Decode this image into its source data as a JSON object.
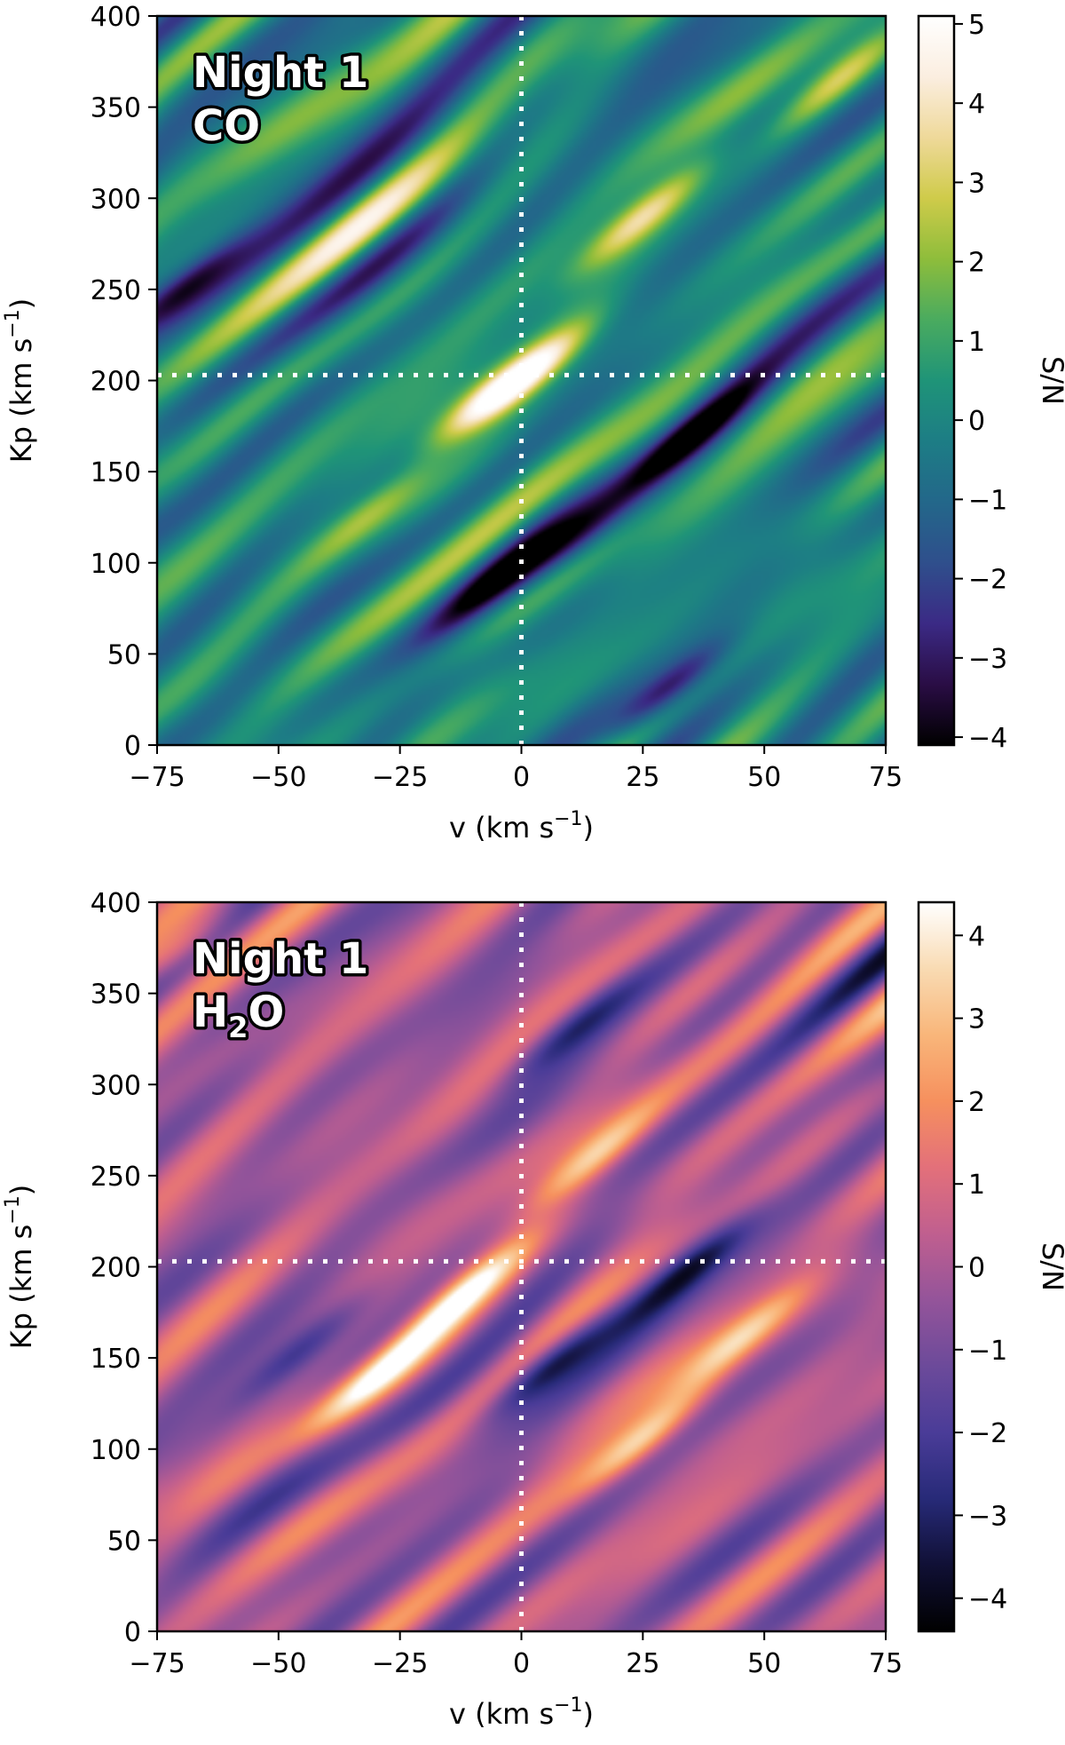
{
  "chart_data": [
    {
      "type": "heatmap",
      "annotation_lines": [
        "Night 1",
        "CO"
      ],
      "xlabel": "v (km s",
      "xlabel_sup": "−1",
      "xlabel_end": ")",
      "ylabel": "Kp (km s",
      "ylabel_sup": "−1",
      "ylabel_end": ")",
      "colorbar_label": "S/N",
      "xlim": [
        -75,
        75
      ],
      "ylim": [
        0,
        400
      ],
      "xticks": [
        -75,
        -50,
        -25,
        0,
        25,
        50,
        75
      ],
      "xtick_labels": [
        "−75",
        "−50",
        "−25",
        "0",
        "25",
        "50",
        "75"
      ],
      "yticks": [
        0,
        50,
        100,
        150,
        200,
        250,
        300,
        350,
        400
      ],
      "ytick_labels": [
        "0",
        "50",
        "100",
        "150",
        "200",
        "250",
        "300",
        "350",
        "400"
      ],
      "colorbar_range": [
        -4.1,
        5.1
      ],
      "colorbar_ticks": [
        -4,
        -3,
        -2,
        -1,
        0,
        1,
        2,
        3,
        4,
        5
      ],
      "colorbar_tick_labels": [
        "−4",
        "−3",
        "−2",
        "−1",
        "0",
        "1",
        "2",
        "3",
        "4",
        "5"
      ],
      "colormap": [
        "#000000",
        "#2a0d45",
        "#3b2a85",
        "#2f4f8c",
        "#23678a",
        "#1d7d85",
        "#1f9478",
        "#4aab5f",
        "#8ebd3b",
        "#cfcb4a",
        "#efd99a",
        "#fbeee0",
        "#ffffff"
      ],
      "reference_lines": {
        "v": 0,
        "Kp": 203
      },
      "peak": {
        "v": 2,
        "Kp": 203,
        "snr": 4.8
      },
      "features": [
        {
          "v": 0,
          "Kp": 200,
          "snr": 4.8
        },
        {
          "v": -8,
          "Kp": 190,
          "snr": 3.5
        },
        {
          "v": 25,
          "Kp": 290,
          "snr": 3.8
        },
        {
          "v": 65,
          "Kp": 365,
          "snr": 3.0
        },
        {
          "v": -30,
          "Kp": 130,
          "snr": 2.5
        },
        {
          "v": -70,
          "Kp": 250,
          "snr": -3.2
        },
        {
          "v": 35,
          "Kp": 170,
          "snr": -3.5
        },
        {
          "v": 30,
          "Kp": 30,
          "snr": -3.5
        },
        {
          "v": 10,
          "Kp": 110,
          "snr": -2.8
        },
        {
          "v": -5,
          "Kp": 90,
          "snr": -2.5
        }
      ]
    },
    {
      "type": "heatmap",
      "annotation_lines": [
        "Night 1",
        "H",
        "2",
        "O"
      ],
      "xlabel": "v (km s",
      "xlabel_sup": "−1",
      "xlabel_end": ")",
      "ylabel": "Kp (km s",
      "ylabel_sup": "−1",
      "ylabel_end": ")",
      "colorbar_label": "S/N",
      "xlim": [
        -75,
        75
      ],
      "ylim": [
        0,
        400
      ],
      "xticks": [
        -75,
        -50,
        -25,
        0,
        25,
        50,
        75
      ],
      "xtick_labels": [
        "−75",
        "−50",
        "−25",
        "0",
        "25",
        "50",
        "75"
      ],
      "yticks": [
        0,
        50,
        100,
        150,
        200,
        250,
        300,
        350,
        400
      ],
      "ytick_labels": [
        "0",
        "50",
        "100",
        "150",
        "200",
        "250",
        "300",
        "350",
        "400"
      ],
      "colorbar_range": [
        -4.4,
        4.4
      ],
      "colorbar_ticks": [
        -4,
        -3,
        -2,
        -1,
        0,
        1,
        2,
        3,
        4
      ],
      "colorbar_tick_labels": [
        "−4",
        "−3",
        "−2",
        "−1",
        "0",
        "1",
        "2",
        "3",
        "4"
      ],
      "colormap": [
        "#000000",
        "#101035",
        "#272a78",
        "#4a3c98",
        "#6c4a9a",
        "#94549a",
        "#c05f8f",
        "#e3707a",
        "#f6905e",
        "#f9b67a",
        "#f9dbb3",
        "#ffffff"
      ],
      "reference_lines": {
        "v": 0,
        "Kp": 203
      },
      "peak": {
        "v": -15,
        "Kp": 180,
        "snr": 4.2
      },
      "features": [
        {
          "v": -12,
          "Kp": 185,
          "snr": 4.2
        },
        {
          "v": -30,
          "Kp": 140,
          "snr": 3.8
        },
        {
          "v": 25,
          "Kp": 105,
          "snr": 3.8
        },
        {
          "v": 15,
          "Kp": 260,
          "snr": 3.0
        },
        {
          "v": 45,
          "Kp": 160,
          "snr": 2.8
        },
        {
          "v": -70,
          "Kp": 375,
          "snr": 2.8
        },
        {
          "v": 5,
          "Kp": 145,
          "snr": -3.8
        },
        {
          "v": 35,
          "Kp": 200,
          "snr": -3.2
        },
        {
          "v": -45,
          "Kp": 155,
          "snr": -2.8
        },
        {
          "v": 10,
          "Kp": 330,
          "snr": -2.5
        }
      ]
    }
  ]
}
